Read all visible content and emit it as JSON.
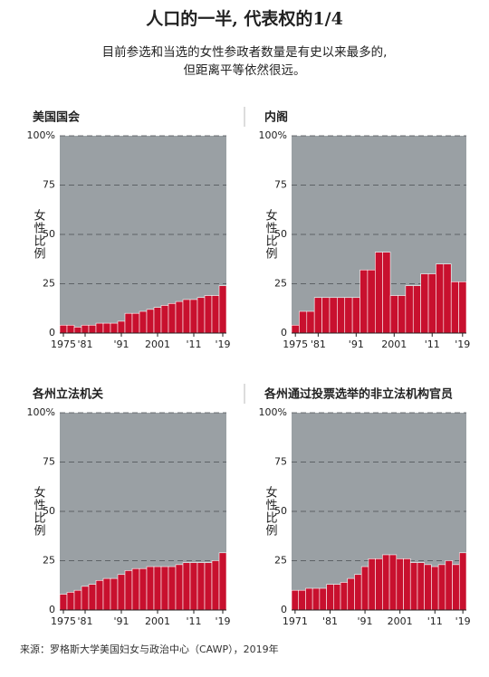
{
  "title": "人口的一半, 代表权的1/4",
  "subtitle": [
    "目前参选和当选的女性参政者数量是有史以来最多的,",
    "但距离平等依然很远。"
  ],
  "source": "来源：罗格斯大学美国妇女与政治中心（CAWP），2019年",
  "chart_data": [
    {
      "type": "bar",
      "title": "美国国会",
      "ylabel": "女性比例",
      "color": "#c8102e",
      "plot_background": "#9aa0a4",
      "grid": true,
      "x": [
        1975,
        1977,
        1979,
        1981,
        1983,
        1985,
        1987,
        1989,
        1991,
        1993,
        1995,
        1997,
        1999,
        2001,
        2003,
        2005,
        2007,
        2009,
        2011,
        2013,
        2015,
        2017,
        2019
      ],
      "values": [
        4,
        4,
        3,
        4,
        4,
        5,
        5,
        5,
        6,
        10,
        10,
        11,
        12,
        13,
        14,
        15,
        16,
        17,
        17,
        18,
        19,
        19,
        24
      ],
      "xlim": [
        1974,
        2020
      ],
      "ylim": [
        0,
        100
      ],
      "xticks": [
        1975,
        {
          "value": 1981,
          "label": "'81"
        },
        {
          "value": 1991,
          "label": "'91"
        },
        2001,
        {
          "value": 2011,
          "label": "'11"
        },
        {
          "value": 2019,
          "label": "'19"
        }
      ],
      "yticks": [
        0,
        25,
        50,
        75,
        {
          "value": 100,
          "label": "100%"
        }
      ]
    },
    {
      "type": "bar",
      "title": "内阁",
      "ylabel": "女性比例",
      "color": "#c8102e",
      "plot_background": "#9aa0a4",
      "grid": true,
      "x": [
        1975,
        1977,
        1979,
        1981,
        1983,
        1985,
        1987,
        1989,
        1991,
        1993,
        1995,
        1997,
        1999,
        2001,
        2003,
        2005,
        2007,
        2009,
        2011,
        2013,
        2015,
        2017,
        2019
      ],
      "values": [
        4,
        11,
        11,
        18,
        18,
        18,
        18,
        18,
        18,
        32,
        32,
        41,
        41,
        19,
        19,
        24,
        24,
        30,
        30,
        35,
        35,
        26,
        26
      ],
      "xlim": [
        1974,
        2020
      ],
      "ylim": [
        0,
        100
      ],
      "xticks": [
        1975,
        {
          "value": 1981,
          "label": "'81"
        },
        {
          "value": 1991,
          "label": "'91"
        },
        2001,
        {
          "value": 2011,
          "label": "'11"
        },
        {
          "value": 2019,
          "label": "'19"
        }
      ],
      "yticks": [
        0,
        25,
        50,
        75,
        {
          "value": 100,
          "label": "100%"
        }
      ]
    },
    {
      "type": "bar",
      "title": "各州立法机关",
      "ylabel": "女性比例",
      "color": "#c8102e",
      "plot_background": "#9aa0a4",
      "grid": true,
      "x": [
        1975,
        1977,
        1979,
        1981,
        1983,
        1985,
        1987,
        1989,
        1991,
        1993,
        1995,
        1997,
        1999,
        2001,
        2003,
        2005,
        2007,
        2009,
        2011,
        2013,
        2015,
        2017,
        2019
      ],
      "values": [
        8,
        9,
        10,
        12,
        13,
        15,
        16,
        16,
        18,
        20,
        21,
        21,
        22,
        22,
        22,
        22,
        23,
        24,
        24,
        24,
        24,
        25,
        29
      ],
      "xlim": [
        1974,
        2020
      ],
      "ylim": [
        0,
        100
      ],
      "xticks": [
        1975,
        {
          "value": 1981,
          "label": "'81"
        },
        {
          "value": 1991,
          "label": "'91"
        },
        2001,
        {
          "value": 2011,
          "label": "'11"
        },
        {
          "value": 2019,
          "label": "'19"
        }
      ],
      "yticks": [
        0,
        25,
        50,
        75,
        {
          "value": 100,
          "label": "100%"
        }
      ]
    },
    {
      "type": "bar",
      "title": "各州通过投票选举的非立法机构官员",
      "ylabel": "女性比例",
      "color": "#c8102e",
      "plot_background": "#9aa0a4",
      "grid": true,
      "x": [
        1971,
        1973,
        1975,
        1977,
        1979,
        1981,
        1983,
        1985,
        1987,
        1989,
        1991,
        1993,
        1995,
        1997,
        1999,
        2001,
        2003,
        2005,
        2007,
        2009,
        2011,
        2013,
        2015,
        2017,
        2019
      ],
      "values": [
        10,
        10,
        11,
        11,
        11,
        13,
        13,
        14,
        16,
        18,
        22,
        26,
        26,
        28,
        28,
        26,
        26,
        24,
        24,
        23,
        22,
        23,
        25,
        23,
        29
      ],
      "xlim": [
        1970,
        2020
      ],
      "ylim": [
        0,
        100
      ],
      "xticks": [
        1971,
        {
          "value": 1981,
          "label": "'81"
        },
        {
          "value": 1991,
          "label": "'91"
        },
        2001,
        {
          "value": 2011,
          "label": "'11"
        },
        {
          "value": 2019,
          "label": "'19"
        }
      ],
      "yticks": [
        0,
        25,
        50,
        75,
        {
          "value": 100,
          "label": "100%"
        }
      ]
    }
  ]
}
